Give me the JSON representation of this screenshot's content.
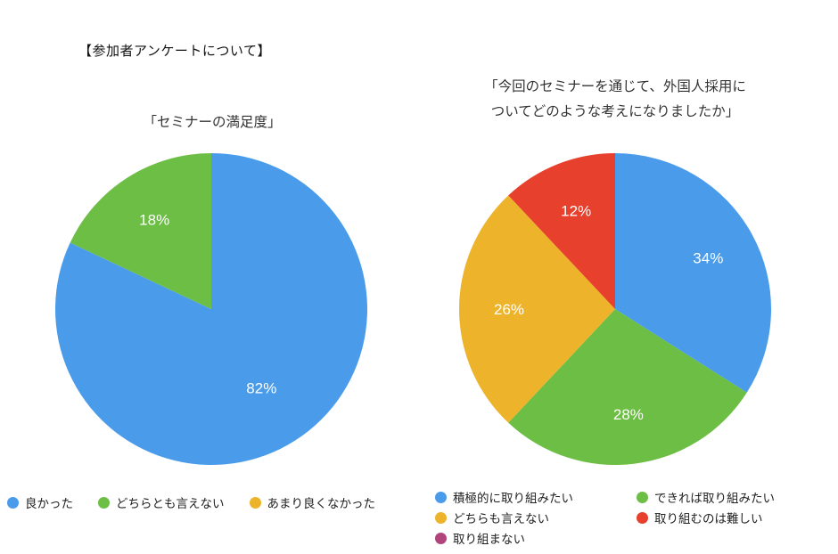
{
  "page": {
    "heading": "【参加者アンケートについて】"
  },
  "chart_data": [
    {
      "type": "pie",
      "title": "「セミナーの満足度」",
      "title_lines": [
        "「セミナーの満足度」"
      ],
      "labels": [
        "良かった",
        "どちらとも言えない",
        "あまり良くなかった"
      ],
      "values": [
        82,
        18,
        0
      ],
      "slice_labels": [
        "82%",
        "18%"
      ],
      "colors": [
        "#4a9ceb",
        "#6dbe45",
        "#edb32b"
      ],
      "legend_position": "bottom",
      "start_angle": "12-o'clock, clockwise"
    },
    {
      "type": "pie",
      "title": "「今回のセミナーを通じて、外国人採用についてどのような考えになりましたか」",
      "title_lines": [
        "「今回のセミナーを通じて、外国人採用に",
        "ついてどのような考えになりましたか」"
      ],
      "labels": [
        "積極的に取り組みたい",
        "できれば取り組みたい",
        "どちらも言えない",
        "取り組むのは難しい",
        "取り組まない"
      ],
      "values": [
        34,
        28,
        26,
        12,
        0
      ],
      "slice_labels": [
        "34%",
        "28%",
        "26%",
        "12%"
      ],
      "colors": [
        "#4a9ceb",
        "#6dbe45",
        "#edb32b",
        "#e7402c",
        "#b1457b"
      ],
      "legend_position": "bottom",
      "start_angle": "12-o'clock, clockwise"
    }
  ]
}
